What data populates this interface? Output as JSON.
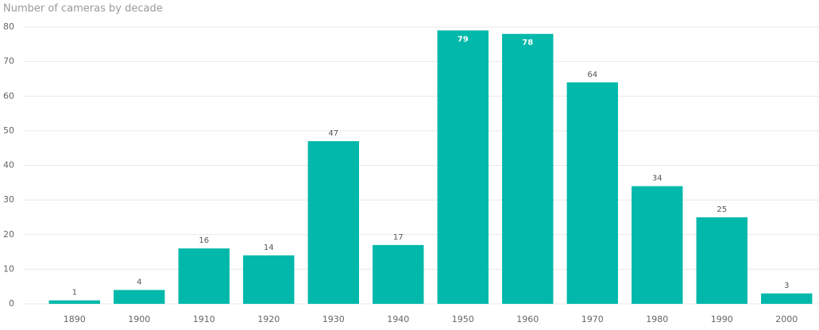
{
  "chart_data": {
    "type": "bar",
    "title": "Number of cameras by decade",
    "categories": [
      "1890",
      "1900",
      "1910",
      "1920",
      "1930",
      "1940",
      "1950",
      "1960",
      "1970",
      "1980",
      "1990",
      "2000"
    ],
    "values": [
      1,
      4,
      16,
      14,
      47,
      17,
      79,
      78,
      64,
      34,
      25,
      3
    ],
    "color": "#01b8aa",
    "ylim": [
      0,
      80
    ],
    "yticks": [
      0,
      10,
      20,
      30,
      40,
      50,
      60,
      70,
      80
    ],
    "grid": true
  }
}
